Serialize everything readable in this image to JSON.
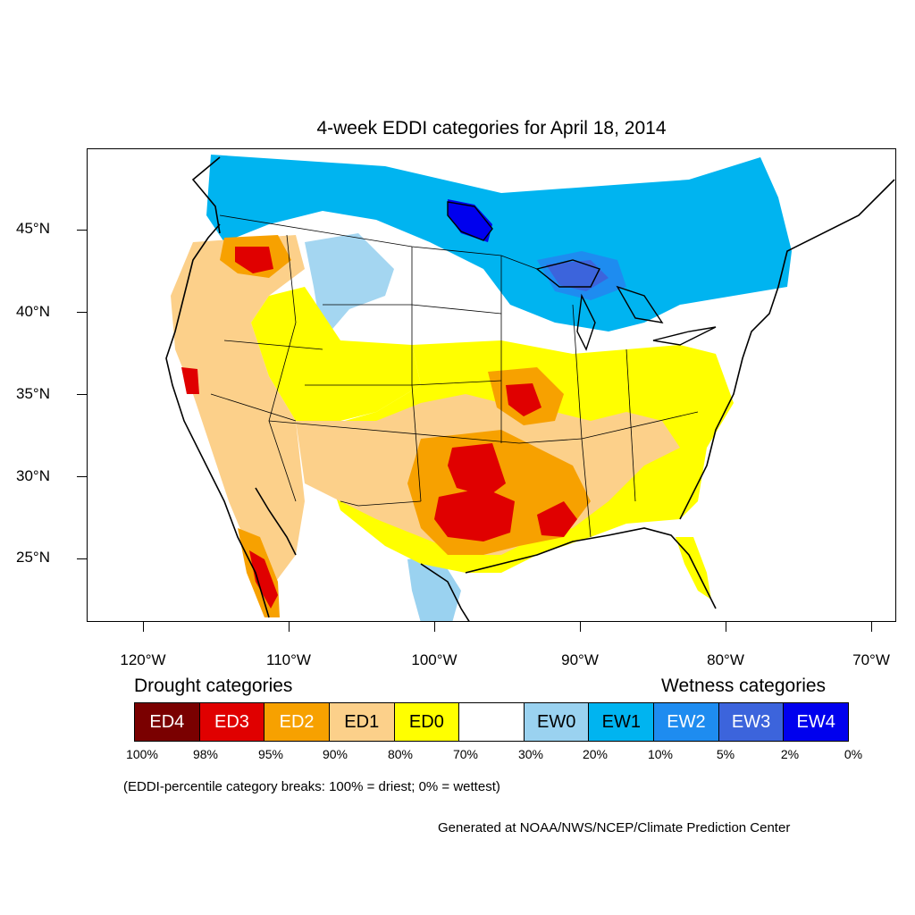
{
  "title": "4-week EDDI categories for April 18, 2014",
  "latitude_labels": [
    "45°N",
    "40°N",
    "35°N",
    "30°N",
    "25°N"
  ],
  "longitude_labels": [
    "120°W",
    "110°W",
    "100°W",
    "90°W",
    "80°W",
    "70°W"
  ],
  "legend": {
    "drought_heading": "Drought categories",
    "wetness_heading": "Wetness categories",
    "categories": [
      {
        "label": "ED4",
        "color": "#7a0000"
      },
      {
        "label": "ED3",
        "color": "#e00000"
      },
      {
        "label": "ED2",
        "color": "#f7a100"
      },
      {
        "label": "ED1",
        "color": "#fcd08a"
      },
      {
        "label": "ED0",
        "color": "#ffff00"
      },
      {
        "label": "",
        "color": "#ffffff"
      },
      {
        "label": "EW0",
        "color": "#9ad2f0"
      },
      {
        "label": "EW1",
        "color": "#00b4f0"
      },
      {
        "label": "EW2",
        "color": "#1e8cf0"
      },
      {
        "label": "EW3",
        "color": "#3c64dc"
      },
      {
        "label": "EW4",
        "color": "#0000ee"
      }
    ],
    "percent_breaks": [
      "100%",
      "98%",
      "95%",
      "90%",
      "80%",
      "70%",
      "30%",
      "20%",
      "10%",
      "5%",
      "2%",
      "0%"
    ],
    "note": "(EDDI-percentile category breaks: 100% = driest; 0% = wettest)"
  },
  "credit": "Generated at NOAA/NWS/NCEP/Climate Prediction Center"
}
